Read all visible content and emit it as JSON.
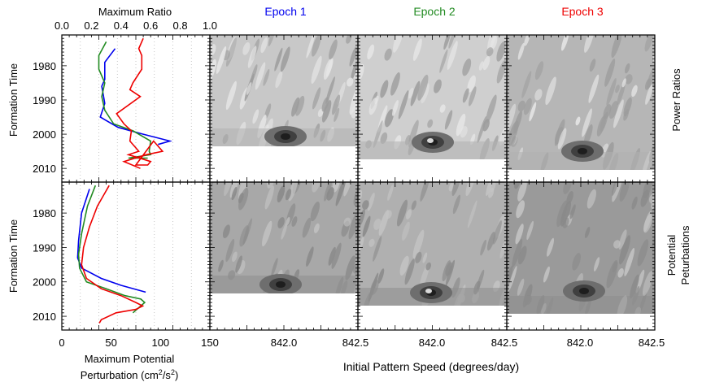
{
  "chart_data": [
    {
      "type": "line",
      "panel": "top-left",
      "xlabel": "Maximum Ratio",
      "ylabel": "Formation Time",
      "xlim": [
        0.0,
        1.0
      ],
      "ylim": [
        2014,
        1971
      ],
      "x_ticks": [
        "0.0",
        "0.2",
        "0.4",
        "0.6",
        "0.8",
        "1.0"
      ],
      "y_ticks": [
        "1980",
        "1990",
        "2000",
        "2010"
      ],
      "series": [
        {
          "color": "#0000ee",
          "points": [
            [
              0.36,
              1975
            ],
            [
              0.29,
              1979
            ],
            [
              0.29,
              1984
            ],
            [
              0.27,
              1986
            ],
            [
              0.29,
              1991
            ],
            [
              0.26,
              1995
            ],
            [
              0.38,
              1998
            ],
            [
              0.55,
              2000
            ],
            [
              0.73,
              2002
            ],
            [
              0.65,
              2003
            ]
          ]
        },
        {
          "color": "#228b22",
          "points": [
            [
              0.3,
              1973
            ],
            [
              0.25,
              1977
            ],
            [
              0.25,
              1981
            ],
            [
              0.29,
              1985
            ],
            [
              0.27,
              1989
            ],
            [
              0.29,
              1993
            ],
            [
              0.35,
              1997
            ],
            [
              0.48,
              1999
            ],
            [
              0.6,
              2002
            ],
            [
              0.59,
              2005
            ],
            [
              0.6,
              2006
            ],
            [
              0.45,
              2007
            ],
            [
              0.58,
              2007
            ]
          ]
        },
        {
          "color": "#ee0000",
          "points": [
            [
              0.55,
              1972
            ],
            [
              0.52,
              1975
            ],
            [
              0.54,
              1977
            ],
            [
              0.54,
              1981
            ],
            [
              0.48,
              1985
            ],
            [
              0.46,
              1987
            ],
            [
              0.53,
              1989
            ],
            [
              0.37,
              1994
            ],
            [
              0.42,
              1997
            ],
            [
              0.47,
              1999
            ],
            [
              0.46,
              2002
            ],
            [
              0.5,
              2004
            ],
            [
              0.52,
              2005
            ],
            [
              0.45,
              2006
            ],
            [
              0.6,
              2008
            ],
            [
              0.58,
              2009
            ],
            [
              0.5,
              2009
            ],
            [
              0.62,
              2002
            ],
            [
              0.68,
              2005
            ],
            [
              0.57,
              2006
            ],
            [
              0.42,
              2008
            ],
            [
              0.53,
              2010
            ]
          ]
        }
      ]
    },
    {
      "type": "line",
      "panel": "bottom-left",
      "xlabel": "Maximum Potential Perturbation (cm²/s²)",
      "ylabel": "Formation Time",
      "xlim": [
        0,
        150
      ],
      "ylim": [
        2014,
        1971
      ],
      "x_ticks": [
        "0",
        "50",
        "100",
        "150"
      ],
      "y_ticks": [
        "1980",
        "1990",
        "2000",
        "2010"
      ],
      "series": [
        {
          "color": "#0000ee",
          "points": [
            [
              28,
              1973
            ],
            [
              20,
              1980
            ],
            [
              17,
              1988
            ],
            [
              16,
              1993
            ],
            [
              20,
              1996
            ],
            [
              40,
              1999
            ],
            [
              60,
              2001
            ],
            [
              85,
              2003
            ]
          ]
        },
        {
          "color": "#228b22",
          "points": [
            [
              34,
              1972
            ],
            [
              26,
              1978
            ],
            [
              20,
              1986
            ],
            [
              17,
              1992
            ],
            [
              18,
              1996
            ],
            [
              25,
              2000
            ],
            [
              45,
              2002
            ],
            [
              64,
              2004
            ],
            [
              80,
              2005
            ],
            [
              84,
              2006
            ],
            [
              72,
              2009
            ]
          ]
        },
        {
          "color": "#ee0000",
          "points": [
            [
              48,
              1972
            ],
            [
              36,
              1978
            ],
            [
              28,
              1984
            ],
            [
              22,
              1990
            ],
            [
              20,
              1995
            ],
            [
              25,
              1999
            ],
            [
              40,
              2002
            ],
            [
              60,
              2004
            ],
            [
              75,
              2006
            ],
            [
              82,
              2007
            ],
            [
              75,
              2008
            ],
            [
              55,
              2009
            ],
            [
              40,
              2011
            ],
            [
              38,
              2012
            ]
          ]
        }
      ]
    },
    {
      "type": "heatmap",
      "panels": "3x2 contour maps",
      "columns": [
        "Epoch 1",
        "Epoch 2",
        "Epoch 3"
      ],
      "row_labels": [
        "Power Ratios",
        "Potential Peturbations"
      ],
      "xlabel": "Initial Pattern Speed (degrees/day)",
      "x_ticks": [
        "842.0",
        "842.5",
        "842.0",
        "842.5",
        "842.0",
        "842.5"
      ]
    }
  ],
  "texts": {
    "top_axis_label": "Maximum Ratio",
    "ylabel": "Formation Time",
    "bottom_axis_label_line1": "Maximum Potential",
    "bottom_axis_label_line2": "Perturbation (cm",
    "bottom_axis_label_sup": "2",
    "bottom_axis_label_mid": "/s",
    "bottom_axis_label_end": ")",
    "xlabel_maps": "Initial Pattern Speed (degrees/day)",
    "epoch1": "Epoch 1",
    "epoch2": "Epoch 2",
    "epoch3": "Epoch 3",
    "row_label_top": "Power Ratios",
    "row_label_bottom_1": "Potential",
    "row_label_bottom_2": "Peturbations",
    "colors": {
      "epoch1": "#0000ee",
      "epoch2": "#228b22",
      "epoch3": "#ee0000"
    }
  }
}
